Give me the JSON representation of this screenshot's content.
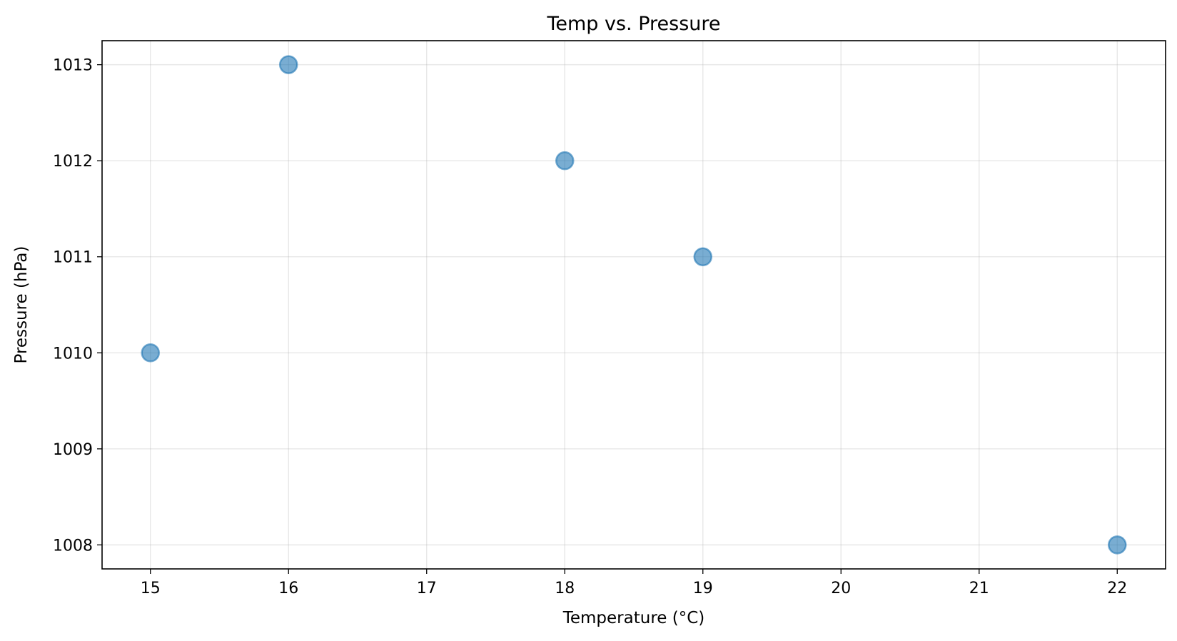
{
  "chart_data": {
    "type": "scatter",
    "title": "Temp vs. Pressure",
    "xlabel": "Temperature (°C)",
    "ylabel": "Pressure (hPa)",
    "points": [
      {
        "x": 15,
        "y": 1010
      },
      {
        "x": 16,
        "y": 1013
      },
      {
        "x": 18,
        "y": 1012
      },
      {
        "x": 19,
        "y": 1011
      },
      {
        "x": 22,
        "y": 1008
      }
    ],
    "xlim": [
      14.65,
      22.35
    ],
    "ylim": [
      1007.75,
      1013.25
    ],
    "xticks": [
      15,
      16,
      17,
      18,
      19,
      20,
      21,
      22
    ],
    "yticks": [
      1008,
      1009,
      1010,
      1011,
      1012,
      1013
    ],
    "grid": true,
    "colors": {
      "point_fill": "#1f77b4",
      "point_alpha": 0.6
    }
  }
}
